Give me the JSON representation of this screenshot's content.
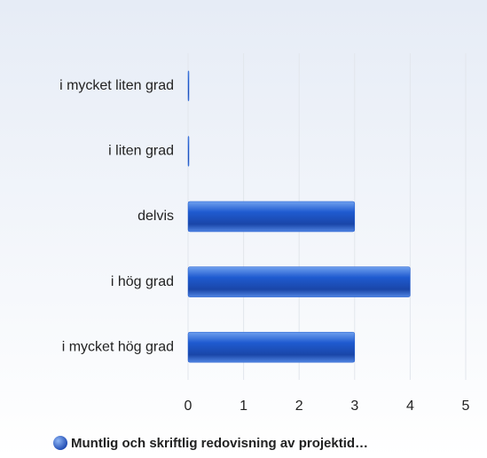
{
  "chart_data": {
    "type": "bar",
    "orientation": "horizontal",
    "categories": [
      "i mycket liten grad",
      "i liten grad",
      "delvis",
      "i hög grad",
      "i mycket hög grad"
    ],
    "series": [
      {
        "name": "Muntlig och skriftlig redovisning av projektid…",
        "color": "#1f5bd0",
        "values": [
          0,
          0,
          3,
          4,
          3
        ]
      }
    ],
    "xlim": [
      0,
      5
    ],
    "xticks": [
      0,
      1,
      2,
      3,
      4,
      5
    ],
    "grid": true,
    "legend": "bottom"
  }
}
